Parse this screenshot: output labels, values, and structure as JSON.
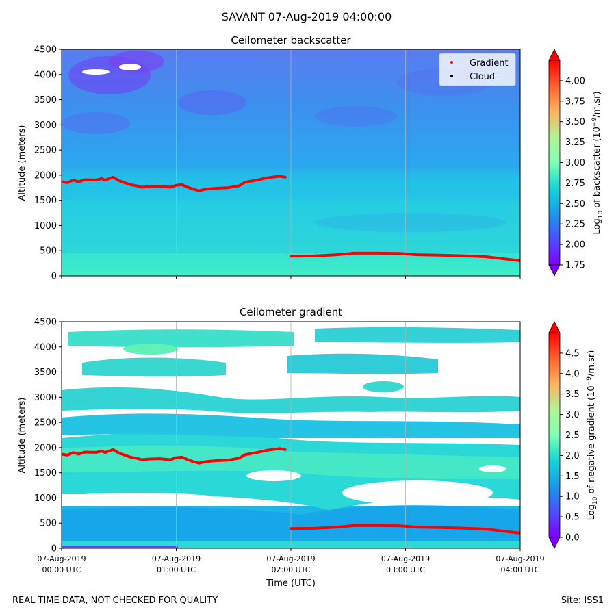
{
  "suptitle": "SAVANT 07-Aug-2019 04:00:00",
  "footer_left": "REAL TIME DATA, NOT CHECKED FOR QUALITY",
  "footer_right": "Site: ISS1",
  "xlabel": "Time (UTC)",
  "xticks": [
    {
      "l1": "07-Aug-2019",
      "l2": "00:00 UTC",
      "h": 0
    },
    {
      "l1": "07-Aug-2019",
      "l2": "01:00 UTC",
      "h": 1
    },
    {
      "l1": "07-Aug-2019",
      "l2": "02:00 UTC",
      "h": 2
    },
    {
      "l1": "07-Aug-2019",
      "l2": "03:00 UTC",
      "h": 3
    },
    {
      "l1": "07-Aug-2019",
      "l2": "04:00 UTC",
      "h": 4
    }
  ],
  "colors": {
    "gradient_marker": "#ff0000",
    "cloud_marker": "#000000",
    "bg_low": "#2ad8d8",
    "bg_mid": "#2aa8ee",
    "bg_high": "#4e8cf0"
  },
  "chart_data": [
    {
      "type": "heatmap",
      "title": "Ceilometer backscatter",
      "ylabel": "Altitude (meters)",
      "xlim_hours": [
        0,
        4
      ],
      "ylim": [
        0,
        4500
      ],
      "yticks": [
        0,
        500,
        1000,
        1500,
        2000,
        2500,
        3000,
        3500,
        4000,
        4500
      ],
      "colorbar": {
        "label": "Log",
        "label_sub": "10",
        "label_rest": " of backscatter (10",
        "label_sup": "−9",
        "label_end": "/m.sr)",
        "range": [
          1.75,
          4.25
        ],
        "ticks": [
          "1.75",
          "2.00",
          "2.25",
          "2.50",
          "2.75",
          "3.00",
          "3.25",
          "3.50",
          "3.75",
          "4.00"
        ]
      },
      "legend": {
        "placement": "top-right",
        "entries": [
          "Gradient",
          "Cloud"
        ]
      },
      "grid": "vertical"
    },
    {
      "type": "heatmap",
      "title": "Ceilometer gradient",
      "ylabel": "Altitude (meters)",
      "xlim_hours": [
        0,
        4
      ],
      "ylim": [
        0,
        4500
      ],
      "yticks": [
        0,
        500,
        1000,
        1500,
        2000,
        2500,
        3000,
        3500,
        4000,
        4500
      ],
      "colorbar": {
        "label": "Log",
        "label_sub": "10",
        "label_rest": " of negative gradient (10",
        "label_sup": "−9",
        "label_end": "/m.sr)",
        "range": [
          0,
          5
        ],
        "ticks": [
          "0.0",
          "0.5",
          "1.0",
          "1.5",
          "2.0",
          "2.5",
          "3.0",
          "3.5",
          "4.0",
          "4.5"
        ]
      },
      "grid": "vertical"
    }
  ],
  "gradient_series": {
    "name": "Gradient",
    "segments": [
      [
        [
          0.0,
          1870
        ],
        [
          0.05,
          1850
        ],
        [
          0.1,
          1900
        ],
        [
          0.15,
          1870
        ],
        [
          0.2,
          1910
        ],
        [
          0.3,
          1905
        ],
        [
          0.35,
          1930
        ],
        [
          0.38,
          1900
        ],
        [
          0.4,
          1920
        ],
        [
          0.45,
          1960
        ],
        [
          0.5,
          1890
        ],
        [
          0.55,
          1850
        ],
        [
          0.6,
          1810
        ],
        [
          0.65,
          1790
        ],
        [
          0.7,
          1760
        ],
        [
          0.75,
          1770
        ],
        [
          0.85,
          1780
        ],
        [
          0.95,
          1760
        ],
        [
          1.0,
          1800
        ],
        [
          1.05,
          1810
        ],
        [
          1.1,
          1760
        ],
        [
          1.15,
          1720
        ],
        [
          1.2,
          1690
        ],
        [
          1.25,
          1720
        ],
        [
          1.35,
          1740
        ],
        [
          1.45,
          1750
        ],
        [
          1.55,
          1790
        ],
        [
          1.6,
          1860
        ],
        [
          1.7,
          1900
        ],
        [
          1.8,
          1950
        ],
        [
          1.9,
          1980
        ],
        [
          1.95,
          1960
        ]
      ],
      [
        [
          2.0,
          390
        ],
        [
          2.2,
          395
        ],
        [
          2.4,
          420
        ],
        [
          2.55,
          450
        ],
        [
          2.75,
          450
        ],
        [
          2.95,
          445
        ],
        [
          3.1,
          420
        ],
        [
          3.3,
          410
        ],
        [
          3.5,
          400
        ],
        [
          3.7,
          380
        ],
        [
          3.85,
          340
        ],
        [
          4.0,
          300
        ]
      ]
    ]
  }
}
